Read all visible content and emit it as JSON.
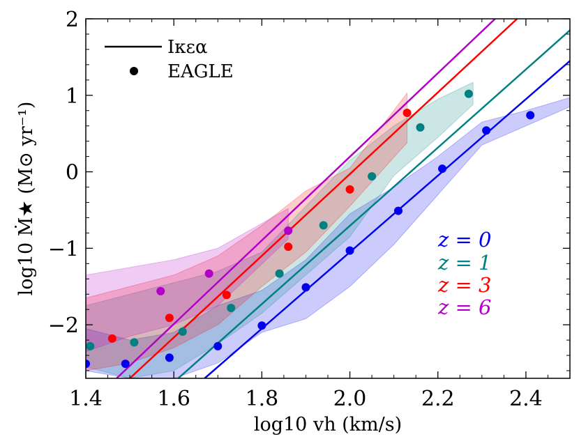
{
  "chart_data": {
    "type": "line",
    "title": "",
    "xlabel": "log10 vh (km/s)",
    "ylabel": "log10 Ṁ★ (M⊙ yr⁻¹)",
    "xlim": [
      1.4,
      2.5
    ],
    "ylim": [
      -2.7,
      2.0
    ],
    "xticks": [
      1.4,
      1.6,
      1.8,
      2.0,
      2.2,
      2.4
    ],
    "xtick_labels": [
      "1.4",
      "1.6",
      "1.8",
      "2.0",
      "2.2",
      "2.4"
    ],
    "yticks": [
      -2,
      -1,
      0,
      1,
      2
    ],
    "ytick_labels": [
      "−2",
      "−1",
      "0",
      "1",
      "2"
    ],
    "legend": {
      "position": "top-left",
      "entries": [
        {
          "label": "Iκεα",
          "style": "line"
        },
        {
          "label": "EAGLE",
          "style": "marker"
        }
      ]
    },
    "series": [
      {
        "name": "z = 0",
        "label": "z = 0",
        "color": "#0000ee",
        "model_line": [
          [
            1.67,
            -2.7
          ],
          [
            2.5,
            1.45
          ]
        ],
        "eagle_points": [
          [
            1.4,
            -2.51
          ],
          [
            1.49,
            -2.51
          ],
          [
            1.59,
            -2.43
          ],
          [
            1.7,
            -2.28
          ],
          [
            1.8,
            -2.01
          ],
          [
            1.9,
            -1.51
          ],
          [
            2.0,
            -1.03
          ],
          [
            2.11,
            -0.51
          ],
          [
            2.21,
            0.04
          ],
          [
            2.31,
            0.54
          ],
          [
            2.41,
            0.74
          ]
        ],
        "band_upper": [
          [
            1.4,
            -2.05
          ],
          [
            1.5,
            -2.2
          ],
          [
            1.6,
            -2.1
          ],
          [
            1.7,
            -1.75
          ],
          [
            1.8,
            -1.55
          ],
          [
            1.9,
            -1.15
          ],
          [
            2.0,
            -0.55
          ],
          [
            2.1,
            -0.2
          ],
          [
            2.2,
            0.2
          ],
          [
            2.3,
            0.65
          ],
          [
            2.4,
            0.8
          ],
          [
            2.5,
            0.97
          ]
        ],
        "band_lower": [
          [
            1.4,
            -2.6
          ],
          [
            1.5,
            -2.7
          ],
          [
            1.6,
            -2.7
          ],
          [
            1.7,
            -2.5
          ],
          [
            1.8,
            -2.1
          ],
          [
            1.9,
            -1.92
          ],
          [
            2.0,
            -1.5
          ],
          [
            2.1,
            -0.95
          ],
          [
            2.2,
            -0.3
          ],
          [
            2.3,
            0.35
          ],
          [
            2.4,
            0.6
          ],
          [
            2.5,
            0.85
          ]
        ]
      },
      {
        "name": "z = 1",
        "label": "z = 1",
        "color": "#008080",
        "model_line": [
          [
            1.61,
            -2.7
          ],
          [
            2.5,
            1.85
          ]
        ],
        "eagle_points": [
          [
            1.41,
            -2.28
          ],
          [
            1.51,
            -2.23
          ],
          [
            1.62,
            -2.09
          ],
          [
            1.73,
            -1.78
          ],
          [
            1.84,
            -1.33
          ],
          [
            1.94,
            -0.7
          ],
          [
            2.05,
            -0.06
          ],
          [
            2.16,
            0.58
          ],
          [
            2.27,
            1.02
          ]
        ],
        "band_upper": [
          [
            1.4,
            -1.75
          ],
          [
            1.5,
            -1.6
          ],
          [
            1.6,
            -1.45
          ],
          [
            1.7,
            -1.3
          ],
          [
            1.8,
            -1.05
          ],
          [
            1.9,
            -0.45
          ],
          [
            2.0,
            0.15
          ],
          [
            2.1,
            0.6
          ],
          [
            2.2,
            0.95
          ],
          [
            2.28,
            1.17
          ]
        ],
        "band_lower": [
          [
            1.4,
            -2.55
          ],
          [
            1.5,
            -2.7
          ],
          [
            1.6,
            -2.6
          ],
          [
            1.7,
            -2.25
          ],
          [
            1.8,
            -1.85
          ],
          [
            1.9,
            -1.35
          ],
          [
            2.0,
            -0.85
          ],
          [
            2.1,
            -0.05
          ],
          [
            2.2,
            0.45
          ],
          [
            2.28,
            0.88
          ]
        ]
      },
      {
        "name": "z = 3",
        "label": "z = 3",
        "color": "#ff0000",
        "model_line": [
          [
            1.5,
            -2.7
          ],
          [
            2.38,
            2.0
          ]
        ],
        "eagle_points": [
          [
            1.46,
            -2.18
          ],
          [
            1.59,
            -1.91
          ],
          [
            1.72,
            -1.61
          ],
          [
            1.86,
            -0.98
          ],
          [
            2.0,
            -0.23
          ],
          [
            2.13,
            0.77
          ]
        ],
        "band_upper": [
          [
            1.4,
            -1.65
          ],
          [
            1.5,
            -1.5
          ],
          [
            1.6,
            -1.35
          ],
          [
            1.7,
            -1.1
          ],
          [
            1.8,
            -0.7
          ],
          [
            1.9,
            -0.25
          ],
          [
            2.0,
            0.05
          ],
          [
            2.13,
            1.03
          ]
        ],
        "band_lower": [
          [
            1.4,
            -2.6
          ],
          [
            1.5,
            -2.5
          ],
          [
            1.6,
            -2.3
          ],
          [
            1.7,
            -2.0
          ],
          [
            1.8,
            -1.5
          ],
          [
            1.9,
            -1.05
          ],
          [
            2.0,
            -0.45
          ],
          [
            2.13,
            0.38
          ]
        ]
      },
      {
        "name": "z = 6",
        "label": "z = 6",
        "color": "#b200c8",
        "model_line": [
          [
            1.47,
            -2.7
          ],
          [
            2.33,
            2.0
          ]
        ],
        "eagle_points": [
          [
            1.57,
            -1.56
          ],
          [
            1.68,
            -1.33
          ],
          [
            1.86,
            -0.77
          ]
        ],
        "band_upper": [
          [
            1.4,
            -1.35
          ],
          [
            1.5,
            -1.25
          ],
          [
            1.6,
            -1.15
          ],
          [
            1.7,
            -1.0
          ],
          [
            1.86,
            -0.48
          ]
        ],
        "band_lower": [
          [
            1.4,
            -2.35
          ],
          [
            1.5,
            -2.15
          ],
          [
            1.6,
            -2.0
          ],
          [
            1.7,
            -1.75
          ],
          [
            1.86,
            -0.88
          ]
        ]
      }
    ]
  }
}
